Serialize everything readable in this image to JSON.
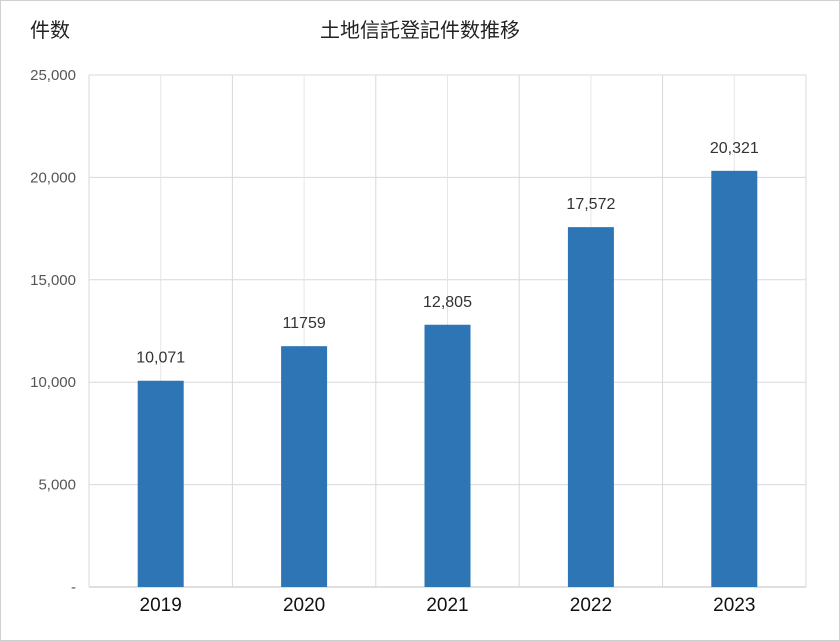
{
  "chart_data": {
    "type": "bar",
    "title": "土地信託登記件数推移",
    "ylabel": "件数",
    "xlabel": "",
    "categories": [
      "2019",
      "2020",
      "2021",
      "2022",
      "2023"
    ],
    "values": [
      10071,
      11759,
      12805,
      17572,
      20321
    ],
    "data_labels": [
      "10,071",
      "11759",
      "12,805",
      "17,572",
      "20,321"
    ],
    "ylim": [
      0,
      25000
    ],
    "yticks": [
      0,
      5000,
      10000,
      15000,
      20000,
      25000
    ],
    "ytick_labels": [
      "-",
      "5,000",
      "10,000",
      "15,000",
      "20,000",
      "25,000"
    ],
    "bar_color": "#2e75b6",
    "grid": true,
    "legend": "none"
  }
}
